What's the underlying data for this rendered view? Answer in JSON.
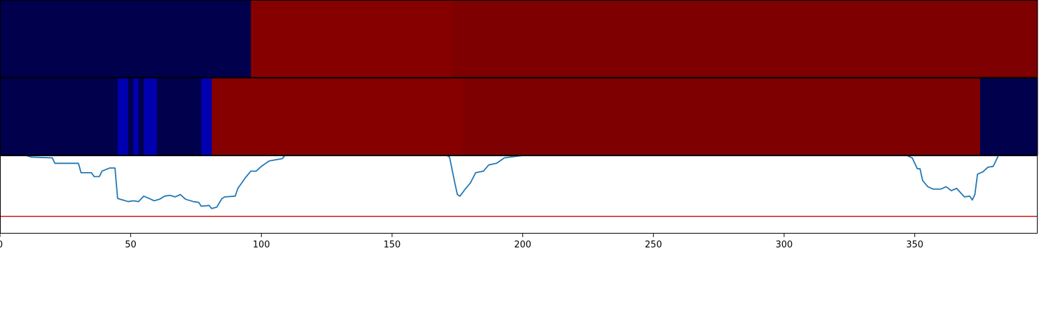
{
  "chart_data": {
    "type": "line",
    "title": "",
    "xlabel": "",
    "ylabel": "",
    "xlim": [
      0,
      397
    ],
    "ylim": [
      0,
      1
    ],
    "grid": false,
    "x_ticks": [
      0,
      50,
      100,
      150,
      200,
      250,
      300,
      350
    ],
    "heatmap_strips": [
      {
        "segments": [
          {
            "start": 0,
            "end": 96,
            "color": "#00004c"
          },
          {
            "start": 96,
            "end": 173,
            "color": "#870000"
          },
          {
            "start": 173,
            "end": 397,
            "color": "#7e0000"
          }
        ]
      },
      {
        "segments": [
          {
            "start": 0,
            "end": 45,
            "color": "#00004c"
          },
          {
            "start": 45,
            "end": 49,
            "color": "#0000b0"
          },
          {
            "start": 49,
            "end": 51,
            "color": "#00004c"
          },
          {
            "start": 51,
            "end": 53,
            "color": "#0000b0"
          },
          {
            "start": 53,
            "end": 55,
            "color": "#00004c"
          },
          {
            "start": 55,
            "end": 60,
            "color": "#0000b0"
          },
          {
            "start": 60,
            "end": 77,
            "color": "#00004c"
          },
          {
            "start": 77,
            "end": 81,
            "color": "#0000b0"
          },
          {
            "start": 81,
            "end": 177,
            "color": "#870000"
          },
          {
            "start": 177,
            "end": 375,
            "color": "#7e0000"
          },
          {
            "start": 375,
            "end": 397,
            "color": "#00004c"
          }
        ]
      }
    ],
    "series": [
      {
        "color": "#1f77b4",
        "points": [
          [
            0,
            1.0
          ],
          [
            10,
            1.0
          ],
          [
            12,
            0.98
          ],
          [
            20,
            0.97
          ],
          [
            21,
            0.9
          ],
          [
            30,
            0.9
          ],
          [
            31,
            0.78
          ],
          [
            35,
            0.78
          ],
          [
            36,
            0.73
          ],
          [
            38,
            0.73
          ],
          [
            39,
            0.8
          ],
          [
            42,
            0.84
          ],
          [
            44,
            0.84
          ],
          [
            45,
            0.45
          ],
          [
            47,
            0.43
          ],
          [
            49,
            0.41
          ],
          [
            51,
            0.42
          ],
          [
            53,
            0.41
          ],
          [
            55,
            0.48
          ],
          [
            57,
            0.45
          ],
          [
            59,
            0.42
          ],
          [
            61,
            0.44
          ],
          [
            63,
            0.48
          ],
          [
            65,
            0.49
          ],
          [
            67,
            0.47
          ],
          [
            69,
            0.5
          ],
          [
            71,
            0.44
          ],
          [
            74,
            0.41
          ],
          [
            76,
            0.4
          ],
          [
            77,
            0.35
          ],
          [
            80,
            0.36
          ],
          [
            81,
            0.32
          ],
          [
            83,
            0.34
          ],
          [
            84,
            0.4
          ],
          [
            85,
            0.45
          ],
          [
            86,
            0.47
          ],
          [
            90,
            0.48
          ],
          [
            91,
            0.58
          ],
          [
            94,
            0.72
          ],
          [
            96,
            0.8
          ],
          [
            98,
            0.8
          ],
          [
            100,
            0.86
          ],
          [
            103,
            0.93
          ],
          [
            108,
            0.96
          ],
          [
            109,
            1.0
          ],
          [
            171,
            1.0
          ],
          [
            172,
            0.98
          ],
          [
            174,
            0.65
          ],
          [
            175,
            0.5
          ],
          [
            176,
            0.48
          ],
          [
            178,
            0.57
          ],
          [
            180,
            0.65
          ],
          [
            182,
            0.78
          ],
          [
            185,
            0.8
          ],
          [
            187,
            0.88
          ],
          [
            190,
            0.9
          ],
          [
            193,
            0.97
          ],
          [
            195,
            0.98
          ],
          [
            200,
            1.0
          ],
          [
            347,
            1.0
          ],
          [
            349,
            0.97
          ],
          [
            351,
            0.83
          ],
          [
            352,
            0.83
          ],
          [
            353,
            0.68
          ],
          [
            355,
            0.6
          ],
          [
            357,
            0.57
          ],
          [
            360,
            0.57
          ],
          [
            362,
            0.6
          ],
          [
            364,
            0.55
          ],
          [
            366,
            0.58
          ],
          [
            369,
            0.47
          ],
          [
            371,
            0.48
          ],
          [
            372,
            0.43
          ],
          [
            373,
            0.5
          ],
          [
            374,
            0.76
          ],
          [
            376,
            0.79
          ],
          [
            378,
            0.85
          ],
          [
            380,
            0.86
          ],
          [
            382,
            1.0
          ],
          [
            397,
            1.0
          ]
        ]
      }
    ],
    "hline": {
      "y": 0.22,
      "color": "#d62728"
    }
  }
}
